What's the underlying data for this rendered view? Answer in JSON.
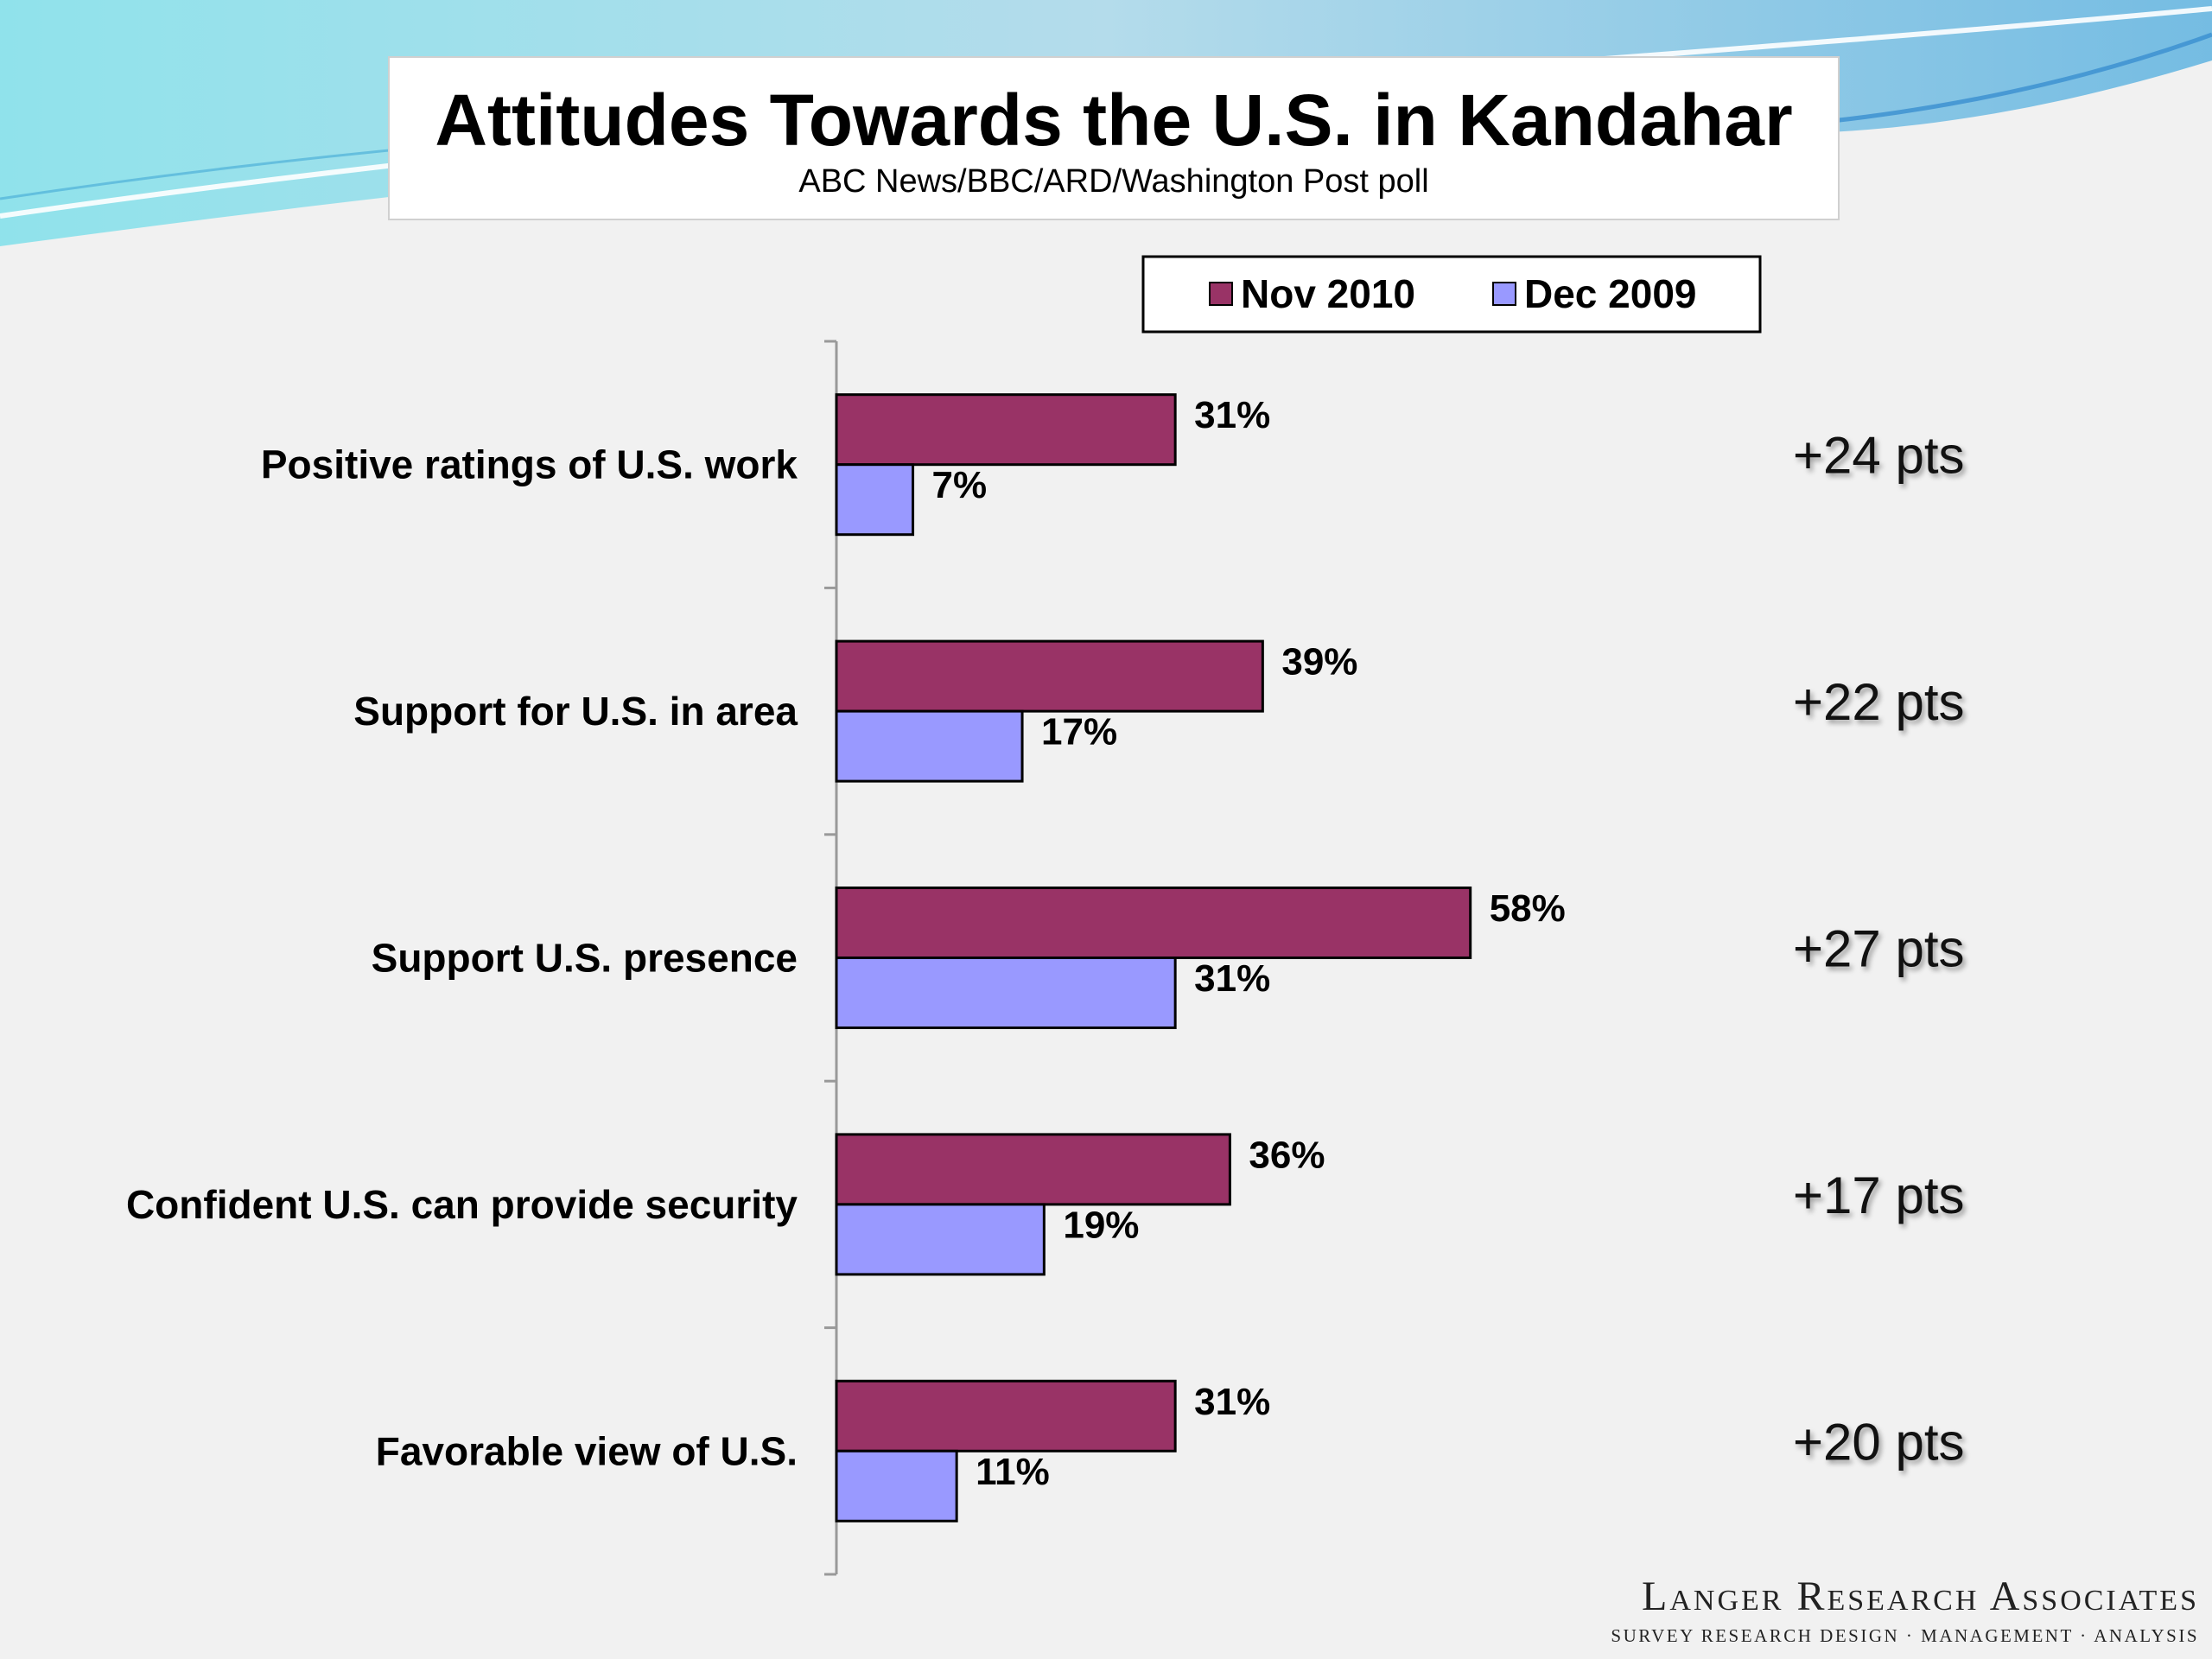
{
  "header": {
    "title": "Attitudes Towards the U.S. in Kandahar",
    "subtitle": "ABC News/BBC/ARD/Washington Post poll"
  },
  "colors": {
    "nov_2010": "#993366",
    "dec_2009": "#9999ff",
    "background": "#f1f1f1",
    "swoosh": "#7fd3e6"
  },
  "chart_data": {
    "type": "bar",
    "orientation": "horizontal",
    "title": "Attitudes Towards the U.S. in Kandahar",
    "subtitle": "ABC News/BBC/ARD/Washington Post poll",
    "categories": [
      "Positive ratings of U.S. work",
      "Support for U.S. in area",
      "Support U.S. presence",
      "Confident U.S. can provide security",
      "Favorable view of U.S."
    ],
    "series": [
      {
        "name": "Nov 2010",
        "values": [
          31,
          39,
          58,
          36,
          31
        ],
        "labels": [
          "31%",
          "39%",
          "58%",
          "36%",
          "31%"
        ]
      },
      {
        "name": "Dec 2009",
        "values": [
          7,
          17,
          31,
          19,
          11
        ],
        "labels": [
          "7%",
          "17%",
          "31%",
          "19%",
          "11%"
        ]
      }
    ],
    "annotations": [
      "+24 pts",
      "+22 pts",
      "+27 pts",
      "+17 pts",
      "+20 pts"
    ],
    "legend_position": "top-right",
    "grid": false,
    "xlim": [
      0,
      100
    ]
  },
  "logo": {
    "name": "Langer Research Associates",
    "tagline": "SURVEY RESEARCH DESIGN · MANAGEMENT · ANALYSIS"
  }
}
